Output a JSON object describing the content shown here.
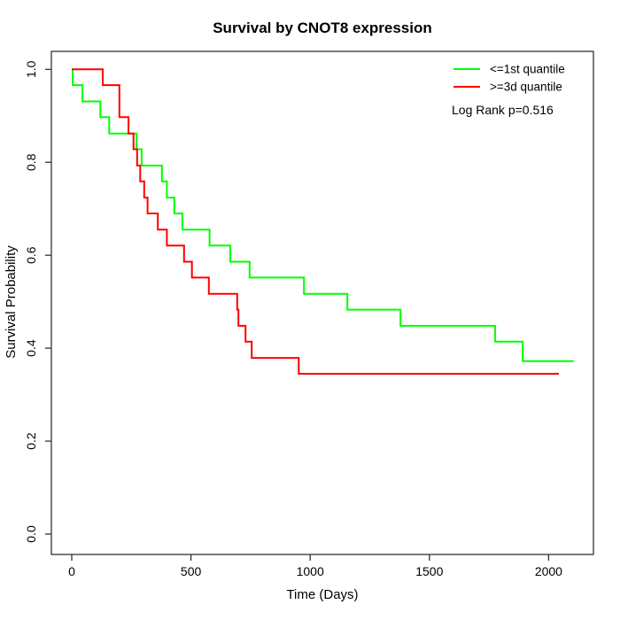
{
  "chart_data": {
    "type": "line",
    "subtype": "kaplan-meier-step",
    "title": "Survival by CNOT8 expression",
    "xlabel": "Time (Days)",
    "ylabel": "Survival Probability",
    "xlim": [
      0,
      2100
    ],
    "ylim": [
      0.0,
      1.0
    ],
    "grid": false,
    "legend_position": "top-right",
    "annotation": "Log Rank p=0.516",
    "x_ticks": [
      "0",
      "500",
      "1000",
      "1500",
      "2000"
    ],
    "y_ticks": [
      "0.0",
      "0.2",
      "0.4",
      "0.6",
      "0.8",
      "1.0"
    ],
    "series": [
      {
        "name": "<=1st quantile",
        "color": "#00ff00",
        "end_time": 2105,
        "points": [
          [
            0,
            1.0
          ],
          [
            4,
            0.966
          ],
          [
            45,
            0.931
          ],
          [
            120,
            0.897
          ],
          [
            157,
            0.862
          ],
          [
            272,
            0.828
          ],
          [
            293,
            0.793
          ],
          [
            378,
            0.759
          ],
          [
            399,
            0.724
          ],
          [
            430,
            0.69
          ],
          [
            464,
            0.655
          ],
          [
            578,
            0.621
          ],
          [
            665,
            0.586
          ],
          [
            746,
            0.552
          ],
          [
            974,
            0.517
          ],
          [
            1156,
            0.483
          ],
          [
            1379,
            0.448
          ],
          [
            1776,
            0.414
          ],
          [
            1891,
            0.372
          ]
        ]
      },
      {
        "name": ">=3d quantile",
        "color": "#ff0000",
        "end_time": 2043,
        "points": [
          [
            0,
            1.0
          ],
          [
            130,
            0.966
          ],
          [
            200,
            0.897
          ],
          [
            238,
            0.862
          ],
          [
            259,
            0.828
          ],
          [
            274,
            0.793
          ],
          [
            287,
            0.759
          ],
          [
            304,
            0.724
          ],
          [
            318,
            0.69
          ],
          [
            361,
            0.655
          ],
          [
            399,
            0.621
          ],
          [
            471,
            0.586
          ],
          [
            504,
            0.552
          ],
          [
            575,
            0.517
          ],
          [
            694,
            0.483
          ],
          [
            699,
            0.448
          ],
          [
            729,
            0.414
          ],
          [
            755,
            0.379
          ],
          [
            952,
            0.345
          ]
        ]
      }
    ]
  }
}
